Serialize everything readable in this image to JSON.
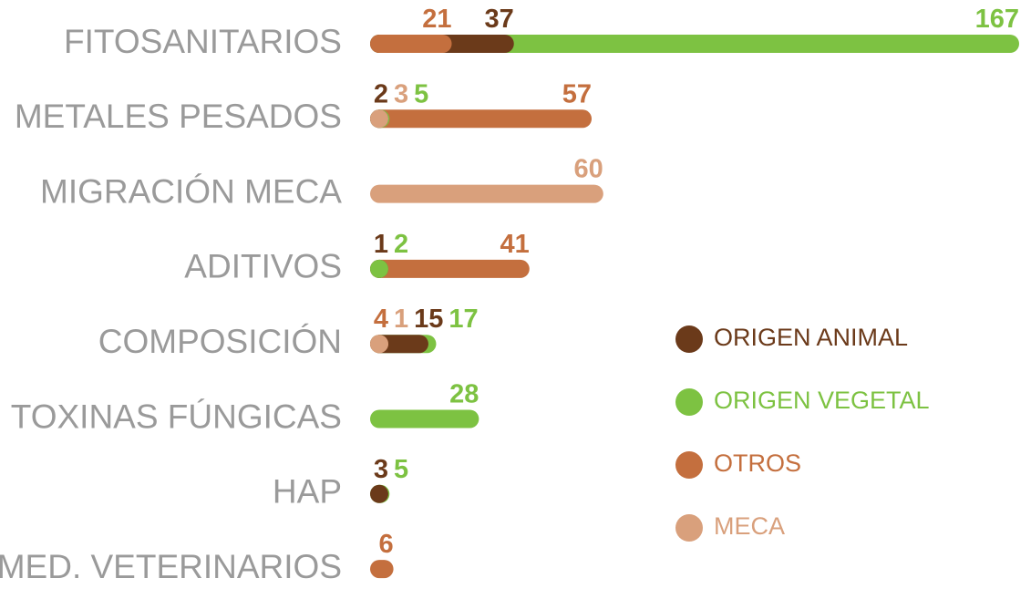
{
  "chart_data": {
    "type": "bar",
    "categories": [
      "FITOSANITARIOS",
      "METALES PESADOS",
      "MIGRACIÓN MECA",
      "ADITIVOS",
      "COMPOSICIÓN",
      "TOXINAS FÚNGICAS",
      "HAP",
      "MED. VETERINARIOS"
    ],
    "series": [
      {
        "name": "ORIGEN ANIMAL",
        "color": "#6b3a1a",
        "values": [
          37,
          2,
          null,
          1,
          15,
          null,
          3,
          null
        ]
      },
      {
        "name": "ORIGEN VEGETAL",
        "color": "#7dc242",
        "values": [
          167,
          5,
          null,
          2,
          17,
          28,
          5,
          null
        ]
      },
      {
        "name": "OTROS",
        "color": "#c46f3e",
        "values": [
          21,
          57,
          null,
          41,
          4,
          null,
          null,
          6
        ]
      },
      {
        "name": "MECA",
        "color": "#d9a07c",
        "values": [
          null,
          3,
          60,
          null,
          1,
          null,
          null,
          null
        ]
      }
    ]
  }
}
